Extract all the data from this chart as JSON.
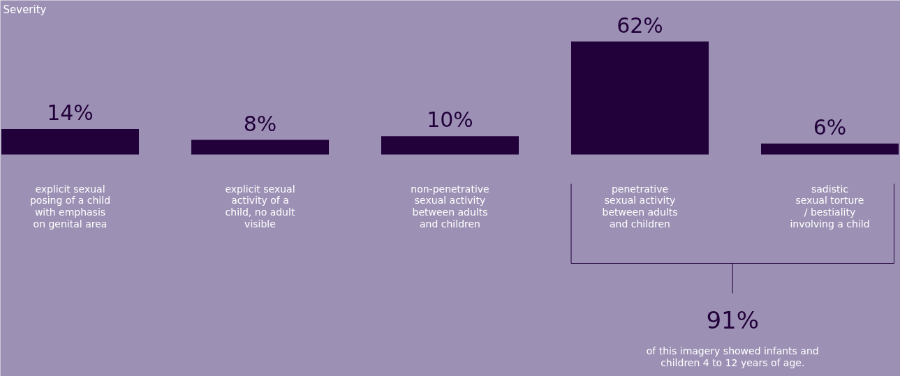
{
  "chart_data": {
    "type": "bar",
    "title": "Severity",
    "categories": [
      "explicit sexual\nposing of a child\nwith emphasis\non genital area",
      "explicit sexual\nactivity of a\nchild, no adult\nvisible",
      "non-penetrative\nsexual activity\nbetween adults\nand children",
      "penetrative\nsexual activity\nbetween adults\nand children",
      "sadistic\nsexual torture\n/ bestiality\ninvolving a child"
    ],
    "values": [
      14,
      8,
      10,
      62,
      6
    ],
    "color": "#22003a",
    "value_labels": [
      "14%",
      "8%",
      "10%",
      "62%",
      "6%"
    ],
    "annotations": [
      "91%",
      "of this imagery showed infants and\nchildren 4 to 12 years of age."
    ]
  }
}
